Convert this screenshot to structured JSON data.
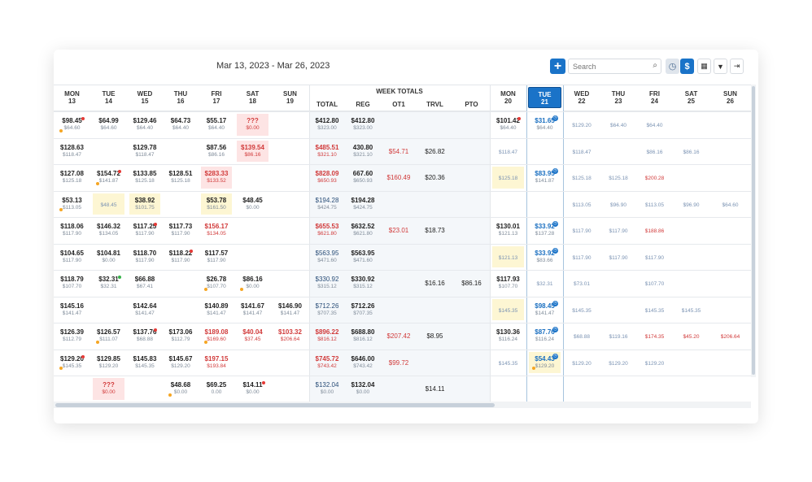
{
  "toolbar": {
    "date_range": "Mar 13, 2023 - Mar 26, 2023",
    "add_label": "+",
    "search_placeholder": "Search",
    "clock_icon": "clock-icon",
    "dollar_label": "$",
    "calendar_icon": "calendar-icon",
    "filter_icon": "filter-icon",
    "export_icon": "export-icon",
    "accent": "#1a73c8"
  },
  "days_week1": [
    {
      "dow": "MON",
      "date": "13"
    },
    {
      "dow": "TUE",
      "date": "14"
    },
    {
      "dow": "WED",
      "date": "15"
    },
    {
      "dow": "THU",
      "date": "16"
    },
    {
      "dow": "FRI",
      "date": "17"
    },
    {
      "dow": "SAT",
      "date": "18"
    },
    {
      "dow": "SUN",
      "date": "19"
    }
  ],
  "week_totals_title": "WEEK TOTALS",
  "week_total_headers": [
    "TOTAL",
    "REG",
    "OT1",
    "TRVL",
    "PTO"
  ],
  "days_week2": [
    {
      "dow": "MON",
      "date": "20"
    },
    {
      "dow": "TUE",
      "date": "21"
    },
    {
      "dow": "WED",
      "date": "22"
    },
    {
      "dow": "THU",
      "date": "23"
    },
    {
      "dow": "FRI",
      "date": "24"
    },
    {
      "dow": "SAT",
      "date": "25"
    },
    {
      "dow": "SUN",
      "date": "26"
    }
  ],
  "rows": [
    {
      "days1": [
        {
          "m": "$98.45",
          "s": "$64.60",
          "dot": "red",
          "dot2": "orange"
        },
        {
          "m": "$64.99",
          "s": "$64.60"
        },
        {
          "m": "$129.46",
          "s": "$64.40"
        },
        {
          "m": "$64.73",
          "s": "$64.40"
        },
        {
          "m": "$55.17",
          "s": "$64.40"
        },
        {
          "m": "???",
          "s": "$0.00",
          "st": "err",
          "red": true
        },
        null
      ],
      "totals": {
        "total": {
          "m": "$412.80",
          "s": "$323.00"
        },
        "reg": {
          "m": "$412.80",
          "s": "$323.00"
        },
        "ot1": "",
        "trvl": "",
        "pto": ""
      },
      "days2": [
        {
          "m": "$101.42",
          "s": "$64.40",
          "dot": "red"
        },
        {
          "m": "$31.65",
          "s": "$64.40",
          "badge": true,
          "blue": true
        },
        {
          "m": "$129.20",
          "light": true
        },
        {
          "m": "$64.40",
          "light": true
        },
        {
          "m": "$64.40",
          "light": true
        },
        null,
        null
      ]
    },
    {
      "days1": [
        {
          "m": "$128.63",
          "s": "$118.47"
        },
        null,
        {
          "m": "$129.78",
          "s": "$118.47"
        },
        null,
        {
          "m": "$87.56",
          "s": "$86.16"
        },
        {
          "m": "$139.54",
          "s": "$86.16",
          "st": "err",
          "red": true
        },
        null
      ],
      "totals": {
        "total": {
          "m": "$485.51",
          "s": "$321.10",
          "red": true
        },
        "reg": {
          "m": "430.80",
          "s": "$321.10"
        },
        "ot1": "$54.71",
        "trvl": "$26.82",
        "pto": ""
      },
      "days2": [
        {
          "m": "$118.47",
          "light": true
        },
        null,
        {
          "m": "$118.47",
          "light": true
        },
        null,
        {
          "m": "$86.16",
          "light": true
        },
        {
          "m": "$86.16",
          "light": true
        },
        null
      ]
    },
    {
      "days1": [
        {
          "m": "$127.08",
          "s": "$125.18"
        },
        {
          "m": "$154.72",
          "s": "$141.87",
          "dot": "red",
          "dot2": "orange"
        },
        {
          "m": "$133.85",
          "s": "$125.18"
        },
        {
          "m": "$128.51",
          "s": "$125.18"
        },
        {
          "m": "$283.33",
          "s": "$133.52",
          "st": "err",
          "red": true
        },
        null,
        null
      ],
      "totals": {
        "total": {
          "m": "$828.09",
          "s": "$650.93",
          "red": true
        },
        "reg": {
          "m": "667.60",
          "s": "$650.93"
        },
        "ot1": "$160.49",
        "trvl": "$20.36",
        "pto": ""
      },
      "days2": [
        {
          "m": "$125.18",
          "light": true,
          "st": "warn"
        },
        {
          "m": "$83.95",
          "s": "$141.87",
          "badge": true,
          "blue": true
        },
        {
          "m": "$125.18",
          "light": true
        },
        {
          "m": "$125.18",
          "light": true
        },
        {
          "m": "$200.28",
          "lightred": true
        },
        null,
        null
      ]
    },
    {
      "days1": [
        {
          "m": "$53.13",
          "s": "$113.05",
          "dot2": "orange"
        },
        {
          "m": "$48.45",
          "light": true,
          "st": "warn"
        },
        {
          "m": "$38.92",
          "s": "$101.75",
          "st": "warn"
        },
        null,
        {
          "m": "$53.78",
          "s": "$161.50",
          "st": "warn"
        },
        {
          "m": "$48.45",
          "s": "$0.00"
        },
        null
      ],
      "totals": {
        "total": {
          "m": "$194.28",
          "s": "$424.75",
          "pay": true
        },
        "reg": {
          "m": "$194.28",
          "s": "$424.75"
        },
        "ot1": "",
        "trvl": "",
        "pto": ""
      },
      "days2": [
        null,
        null,
        {
          "m": "$113.05",
          "light": true
        },
        {
          "m": "$96.90",
          "light": true
        },
        {
          "m": "$113.05",
          "light": true
        },
        {
          "m": "$96.90",
          "light": true
        },
        {
          "m": "$64.60",
          "light": true
        }
      ]
    },
    {
      "days1": [
        {
          "m": "$118.06",
          "s": "$117.90"
        },
        {
          "m": "$146.32",
          "s": "$134.05"
        },
        {
          "m": "$117.25",
          "s": "$117.90",
          "dot": "red"
        },
        {
          "m": "$117.73",
          "s": "$117.90"
        },
        {
          "m": "$156.17",
          "s": "$134.05",
          "red": true
        },
        null,
        null
      ],
      "totals": {
        "total": {
          "m": "$655.53",
          "s": "$621.80",
          "red": true
        },
        "reg": {
          "m": "$632.52",
          "s": "$621.80"
        },
        "ot1": "$23.01",
        "trvl": "$18.73",
        "pto": ""
      },
      "days2": [
        {
          "m": "$130.01",
          "s": "$121.13"
        },
        {
          "m": "$33.92",
          "s": "$137.28",
          "badge": true,
          "blue": true
        },
        {
          "m": "$117.90",
          "light": true
        },
        {
          "m": "$117.90",
          "light": true
        },
        {
          "m": "$188.86",
          "lightred": true
        },
        null,
        null
      ]
    },
    {
      "days1": [
        {
          "m": "$104.65",
          "s": "$117.90"
        },
        {
          "m": "$104.81",
          "s": "$0.00"
        },
        {
          "m": "$118.70",
          "s": "$117.90"
        },
        {
          "m": "$118.22",
          "s": "$117.90",
          "dot": "red"
        },
        {
          "m": "$117.57",
          "s": "$117.90"
        },
        null,
        null
      ],
      "totals": {
        "total": {
          "m": "$563.95",
          "s": "$471.60",
          "pay": true
        },
        "reg": {
          "m": "$563.95",
          "s": "$471.60"
        },
        "ot1": "",
        "trvl": "",
        "pto": ""
      },
      "days2": [
        {
          "m": "$121.13",
          "light": true,
          "st": "warn"
        },
        {
          "m": "$33.92",
          "s": "$83.66",
          "badge": true,
          "blue": true
        },
        {
          "m": "$117.90",
          "light": true
        },
        {
          "m": "$117.90",
          "light": true
        },
        {
          "m": "$117.90",
          "light": true
        },
        null,
        null
      ]
    },
    {
      "days1": [
        {
          "m": "$118.79",
          "s": "$107.70"
        },
        {
          "m": "$32.31",
          "s": "$32.31",
          "dot": "green"
        },
        {
          "m": "$66.88",
          "s": "$67.41"
        },
        null,
        {
          "m": "$26.78",
          "s": "$107.70",
          "dot2": "orange"
        },
        {
          "m": "$86.16",
          "s": "$0.00",
          "dot2": "orange"
        },
        null
      ],
      "totals": {
        "total": {
          "m": "$330.92",
          "s": "$315.12",
          "pay": true
        },
        "reg": {
          "m": "$330.92",
          "s": "$315.12"
        },
        "ot1": "",
        "trvl": "$16.16",
        "pto": "$86.16"
      },
      "days2": [
        {
          "m": "$117.93",
          "s": "$107.70"
        },
        {
          "m": "$32.31",
          "light": true
        },
        {
          "m": "$73.01",
          "light": true
        },
        null,
        {
          "m": "$107.70",
          "light": true
        },
        null,
        null
      ]
    },
    {
      "days1": [
        {
          "m": "$145.16",
          "s": "$141.47"
        },
        null,
        {
          "m": "$142.64",
          "s": "$141.47"
        },
        null,
        {
          "m": "$140.89",
          "s": "$141.47"
        },
        {
          "m": "$141.67",
          "s": "$141.47"
        },
        {
          "m": "$146.90",
          "s": "$141.47"
        }
      ],
      "totals": {
        "total": {
          "m": "$712.26",
          "s": "$707.35",
          "pay": true
        },
        "reg": {
          "m": "$712.26",
          "s": "$707.35"
        },
        "ot1": "",
        "trvl": "",
        "pto": ""
      },
      "days2": [
        {
          "m": "$145.35",
          "light": true,
          "st": "warn"
        },
        {
          "m": "$98.45",
          "s": "$141.47",
          "badge": true,
          "blue": true
        },
        {
          "m": "$145.35",
          "light": true
        },
        null,
        {
          "m": "$145.35",
          "light": true
        },
        {
          "m": "$145.35",
          "light": true
        },
        null
      ]
    },
    {
      "days1": [
        {
          "m": "$126.39",
          "s": "$112.79"
        },
        {
          "m": "$126.57",
          "s": "$111.07",
          "dot2": "orange"
        },
        {
          "m": "$137.76",
          "s": "$68.88",
          "dot": "red"
        },
        {
          "m": "$173.06",
          "s": "$112.79"
        },
        {
          "m": "$189.08",
          "s": "$169.60",
          "red": true,
          "dot2": "orange"
        },
        {
          "m": "$40.04",
          "s": "$37.45",
          "red": true
        },
        {
          "m": "$103.32",
          "s": "$206.64",
          "red": true
        }
      ],
      "totals": {
        "total": {
          "m": "$896.22",
          "s": "$816.12",
          "red": true
        },
        "reg": {
          "m": "$688.80",
          "s": "$816.12"
        },
        "ot1": "$207.42",
        "trvl": "$8.95",
        "pto": ""
      },
      "days2": [
        {
          "m": "$130.36",
          "s": "$116.24"
        },
        {
          "m": "$87.76",
          "s": "$116.24",
          "badge": true,
          "blue": true
        },
        {
          "m": "$68.88",
          "light": true
        },
        {
          "m": "$119.16",
          "light": true
        },
        {
          "m": "$174.35",
          "lightred": true
        },
        {
          "m": "$45.20",
          "lightred": true
        },
        {
          "m": "$206.64",
          "lightred": true
        }
      ]
    },
    {
      "days1": [
        {
          "m": "$129.20",
          "s": "$145.35",
          "dot2": "orange",
          "dot": "red"
        },
        {
          "m": "$129.85",
          "s": "$129.20"
        },
        {
          "m": "$145.83",
          "s": "$145.35"
        },
        {
          "m": "$145.67",
          "s": "$129.20"
        },
        {
          "m": "$197.15",
          "s": "$193.84",
          "red": true
        },
        null,
        null
      ],
      "totals": {
        "total": {
          "m": "$745.72",
          "s": "$743.42",
          "red": true
        },
        "reg": {
          "m": "$646.00",
          "s": "$743.42"
        },
        "ot1": "$99.72",
        "trvl": "",
        "pto": ""
      },
      "days2": [
        {
          "m": "$145.35",
          "light": true
        },
        {
          "m": "$54.43",
          "s": "$129.20",
          "badge": true,
          "blue": true,
          "st": "warn",
          "dot2": "orange"
        },
        {
          "m": "$129.20",
          "light": true
        },
        {
          "m": "$129.20",
          "light": true
        },
        {
          "m": "$129.20",
          "light": true
        },
        null,
        null
      ]
    },
    {
      "days1": [
        null,
        {
          "m": "???",
          "s": "$0.00",
          "st": "err",
          "red": true
        },
        null,
        {
          "m": "$48.68",
          "s": "$0.00",
          "dot2": "orange"
        },
        {
          "m": "$69.25",
          "s": "0.00"
        },
        {
          "m": "$14.11",
          "s": "$0.00",
          "dot": "red"
        },
        null
      ],
      "totals": {
        "total": {
          "m": "$132.04",
          "s": "$0.00",
          "pay": true
        },
        "reg": {
          "m": "$132.04",
          "s": "$0.00"
        },
        "ot1": "",
        "trvl": "$14.11",
        "pto": ""
      },
      "days2": [
        null,
        null,
        null,
        null,
        null,
        null,
        null
      ]
    }
  ]
}
